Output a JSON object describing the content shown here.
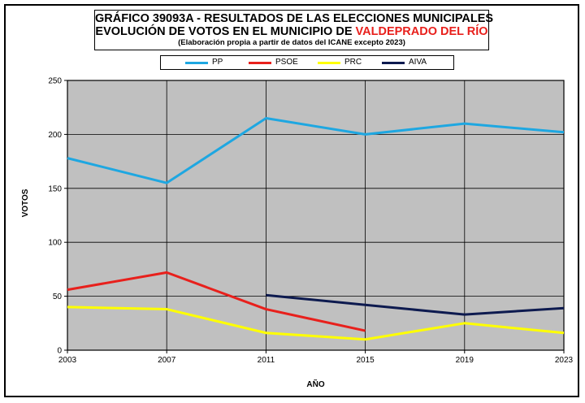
{
  "title": {
    "line1": "GRÁFICO 39093A - RESULTADOS DE LAS ELECCIONES MUNICIPALES",
    "line2_prefix": "EVOLUCIÓN DE VOTOS EN EL MUNICIPIO DE ",
    "line2_highlight": "VALDEPRADO DEL RÍO",
    "line3": "(Elaboración propia a partir de datos del ICANE excepto 2023)"
  },
  "colors": {
    "highlight": "#e8201c",
    "plot_bg": "#c0c0c0"
  },
  "chart_data": {
    "type": "line",
    "title": "GRÁFICO 39093A - RESULTADOS DE LAS ELECCIONES MUNICIPALES",
    "xlabel": "AÑO",
    "ylabel": "VOTOS",
    "x": [
      2003,
      2007,
      2011,
      2015,
      2019,
      2023
    ],
    "ylim": [
      0,
      250
    ],
    "yticks": [
      0,
      50,
      100,
      150,
      200,
      250
    ],
    "grid": true,
    "legend_position": "top",
    "series": [
      {
        "name": "PP",
        "color": "#1ea7e1",
        "values": [
          178,
          155,
          215,
          200,
          210,
          202
        ]
      },
      {
        "name": "PSOE",
        "color": "#e8201c",
        "values": [
          56,
          72,
          38,
          18,
          null,
          null
        ]
      },
      {
        "name": "PRC",
        "color": "#ffff00",
        "values": [
          40,
          38,
          16,
          10,
          25,
          16
        ]
      },
      {
        "name": "AIVA",
        "color": "#0d1a4f",
        "values": [
          null,
          null,
          51,
          42,
          33,
          39
        ]
      }
    ]
  }
}
